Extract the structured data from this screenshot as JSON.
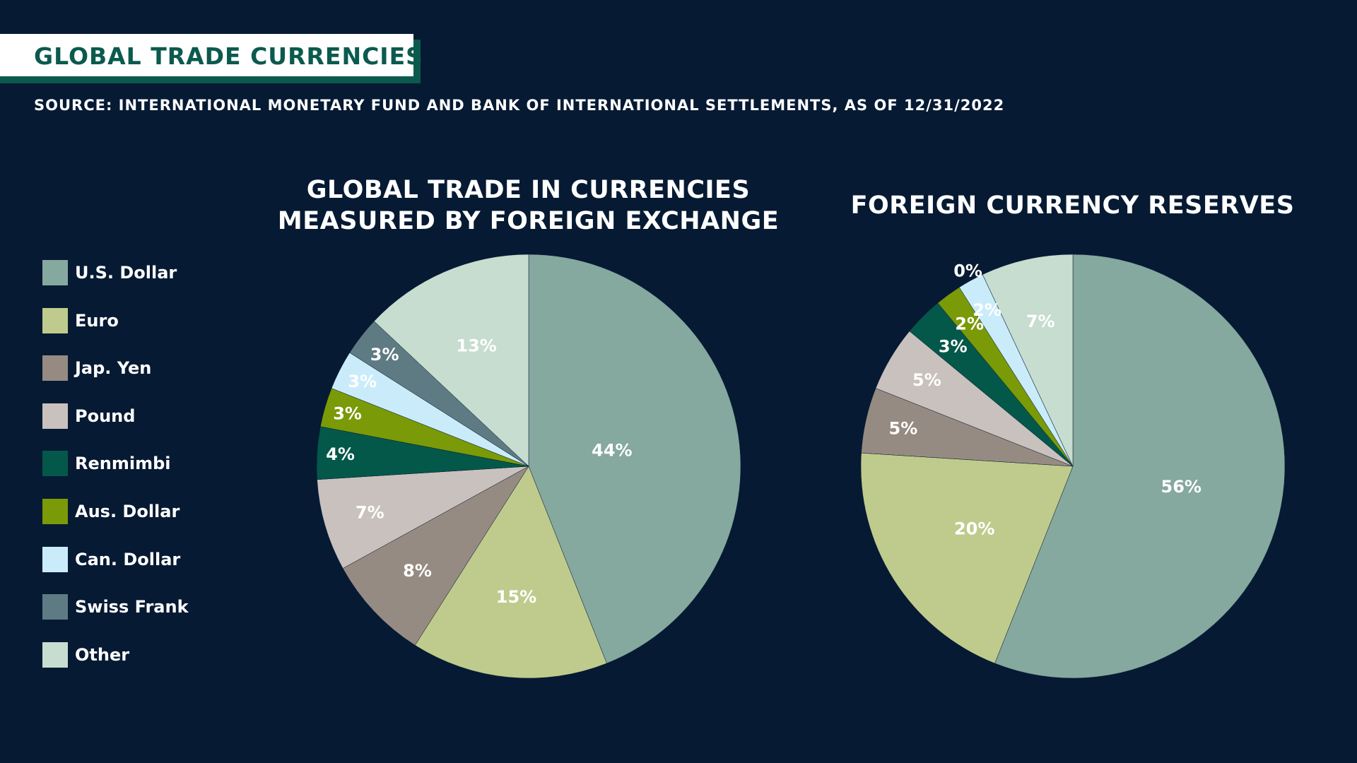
{
  "header": {
    "title": "GLOBAL TRADE CURRENCIES",
    "source": "SOURCE: INTERNATIONAL MONETARY FUND AND BANK OF INTERNATIONAL SETTLEMENTS, AS OF 12/31/2022"
  },
  "colors": {
    "background": "#061a33",
    "title_box": "#ffffff",
    "title_text": "#0b5a4e",
    "accent": "#0b5a4e"
  },
  "legend": [
    {
      "label": "U.S. Dollar",
      "color": "#85a89f"
    },
    {
      "label": "Euro",
      "color": "#bfcb8c"
    },
    {
      "label": "Jap. Yen",
      "color": "#968b82"
    },
    {
      "label": "Pound",
      "color": "#c9c1bd"
    },
    {
      "label": "Renmimbi",
      "color": "#03584a"
    },
    {
      "label": "Aus. Dollar",
      "color": "#7a9a08"
    },
    {
      "label": "Can. Dollar",
      "color": "#caecfa"
    },
    {
      "label": "Swiss Frank",
      "color": "#5e7b83"
    },
    {
      "label": "Other",
      "color": "#c6ddd0"
    }
  ],
  "chart_data": [
    {
      "type": "pie",
      "title": "GLOBAL TRADE IN CURRENCIES MEASURED BY FOREIGN EXCHANGE",
      "title_lines": [
        "GLOBAL TRADE IN CURRENCIES",
        "MEASURED BY FOREIGN EXCHANGE"
      ],
      "categories": [
        "U.S. Dollar",
        "Euro",
        "Jap. Yen",
        "Pound",
        "Renmimbi",
        "Aus. Dollar",
        "Can. Dollar",
        "Swiss Frank",
        "Other"
      ],
      "values": [
        44,
        15,
        8,
        7,
        4,
        3,
        3,
        3,
        13
      ],
      "labels": [
        "44%",
        "15%",
        "8%",
        "7%",
        "4%",
        "3%",
        "3%",
        "3%",
        "13%"
      ],
      "start": "12 o'clock",
      "direction": "clockwise"
    },
    {
      "type": "pie",
      "title": "FOREIGN CURRENCY RESERVES",
      "title_lines": [
        "FOREIGN CURRENCY RESERVES"
      ],
      "categories": [
        "U.S. Dollar",
        "Euro",
        "Jap. Yen",
        "Pound",
        "Renmimbi",
        "Aus. Dollar",
        "Can. Dollar",
        "Swiss Frank",
        "Other"
      ],
      "values": [
        56,
        20,
        5,
        5,
        3,
        2,
        2,
        0,
        7
      ],
      "labels": [
        "56%",
        "20%",
        "5%",
        "5%",
        "3%",
        "2%",
        "2%",
        "0%",
        "7%"
      ],
      "start": "12 o'clock",
      "direction": "clockwise"
    }
  ]
}
